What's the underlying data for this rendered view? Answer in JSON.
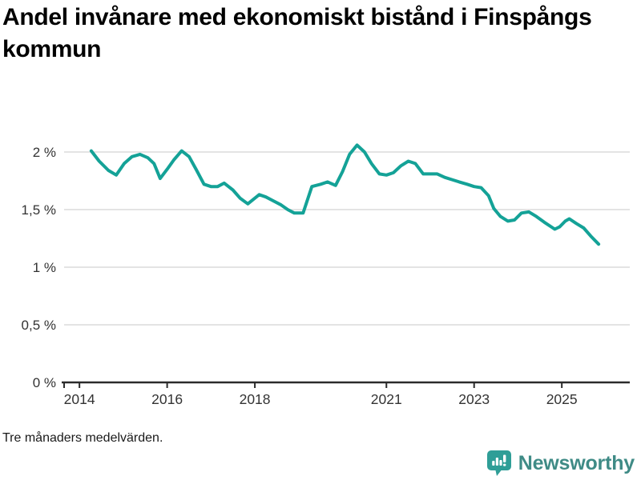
{
  "title": "Andel invånare med ekonomiskt bistånd i Finspångs kommun",
  "footnote": "Tre månaders medelvärden.",
  "branding": {
    "name": "Newsworthy",
    "icon": "newsworthy-bubble-chart-icon",
    "icon_color": "#2f9e97",
    "text_color": "#3f8b86"
  },
  "colors": {
    "line": "#14a297",
    "grid": "#dcdcdc",
    "axis": "#2b2b2b",
    "tick_label": "#333333",
    "title": "#000000"
  },
  "chart_data": {
    "type": "line",
    "title": "Andel invånare med ekonomiskt bistånd i Finspångs kommun",
    "subtitle": "",
    "xlabel": "",
    "ylabel": "",
    "unit": "%",
    "grid": "horizontal",
    "legend": "none",
    "x_range": [
      2013.65,
      2026.55
    ],
    "y_range": [
      0,
      2
    ],
    "x_ticks": [
      {
        "value": 2014,
        "label": "2014"
      },
      {
        "value": 2016,
        "label": "2016"
      },
      {
        "value": 2018,
        "label": "2018"
      },
      {
        "value": 2021,
        "label": "2021"
      },
      {
        "value": 2023,
        "label": "2023"
      },
      {
        "value": 2025,
        "label": "2025"
      }
    ],
    "y_ticks": [
      {
        "value": 0,
        "label": "0 %"
      },
      {
        "value": 0.5,
        "label": "0,5 %"
      },
      {
        "value": 1,
        "label": "1 %"
      },
      {
        "value": 1.5,
        "label": "1,5 %"
      },
      {
        "value": 2,
        "label": "2 %"
      }
    ],
    "series": [
      {
        "name": "Andel invånare med ekonomiskt bistånd (%)",
        "color": "#14a297",
        "points": [
          [
            2014.27,
            2.01
          ],
          [
            2014.45,
            1.92
          ],
          [
            2014.66,
            1.84
          ],
          [
            2014.84,
            1.8
          ],
          [
            2015.02,
            1.9
          ],
          [
            2015.2,
            1.96
          ],
          [
            2015.38,
            1.98
          ],
          [
            2015.56,
            1.95
          ],
          [
            2015.7,
            1.9
          ],
          [
            2015.84,
            1.77
          ],
          [
            2016.0,
            1.85
          ],
          [
            2016.15,
            1.93
          ],
          [
            2016.33,
            2.01
          ],
          [
            2016.5,
            1.96
          ],
          [
            2016.66,
            1.85
          ],
          [
            2016.84,
            1.72
          ],
          [
            2017.0,
            1.7
          ],
          [
            2017.15,
            1.7
          ],
          [
            2017.3,
            1.73
          ],
          [
            2017.5,
            1.67
          ],
          [
            2017.66,
            1.6
          ],
          [
            2017.84,
            1.55
          ],
          [
            2018.1,
            1.63
          ],
          [
            2018.25,
            1.61
          ],
          [
            2018.4,
            1.58
          ],
          [
            2018.6,
            1.54
          ],
          [
            2018.75,
            1.5
          ],
          [
            2018.9,
            1.47
          ],
          [
            2019.1,
            1.47
          ],
          [
            2019.3,
            1.7
          ],
          [
            2019.5,
            1.72
          ],
          [
            2019.66,
            1.74
          ],
          [
            2019.84,
            1.71
          ],
          [
            2020.0,
            1.83
          ],
          [
            2020.16,
            1.98
          ],
          [
            2020.33,
            2.06
          ],
          [
            2020.5,
            2.0
          ],
          [
            2020.66,
            1.9
          ],
          [
            2020.84,
            1.81
          ],
          [
            2021.0,
            1.8
          ],
          [
            2021.16,
            1.82
          ],
          [
            2021.33,
            1.88
          ],
          [
            2021.5,
            1.92
          ],
          [
            2021.66,
            1.9
          ],
          [
            2021.84,
            1.81
          ],
          [
            2022.0,
            1.81
          ],
          [
            2022.16,
            1.81
          ],
          [
            2022.33,
            1.78
          ],
          [
            2022.5,
            1.76
          ],
          [
            2022.66,
            1.74
          ],
          [
            2022.84,
            1.72
          ],
          [
            2023.0,
            1.7
          ],
          [
            2023.16,
            1.69
          ],
          [
            2023.33,
            1.62
          ],
          [
            2023.45,
            1.51
          ],
          [
            2023.6,
            1.44
          ],
          [
            2023.77,
            1.4
          ],
          [
            2023.92,
            1.41
          ],
          [
            2024.08,
            1.47
          ],
          [
            2024.25,
            1.48
          ],
          [
            2024.42,
            1.44
          ],
          [
            2024.6,
            1.39
          ],
          [
            2024.84,
            1.33
          ],
          [
            2024.95,
            1.35
          ],
          [
            2025.08,
            1.4
          ],
          [
            2025.17,
            1.42
          ],
          [
            2025.33,
            1.38
          ],
          [
            2025.5,
            1.34
          ],
          [
            2025.66,
            1.27
          ],
          [
            2025.84,
            1.2
          ]
        ]
      }
    ]
  }
}
